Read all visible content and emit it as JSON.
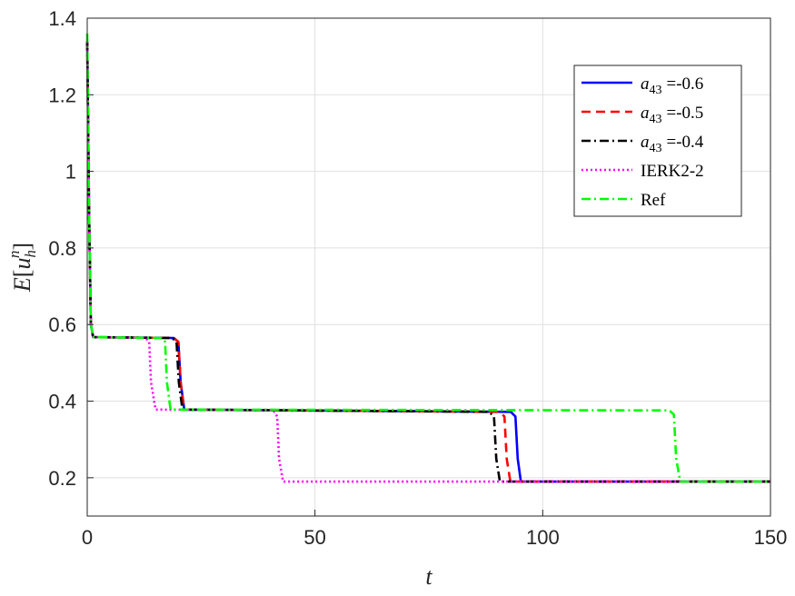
{
  "chart_data": {
    "type": "line",
    "xlabel": "t",
    "ylabel_parts": {
      "fn": "E",
      "var": "u",
      "sub": "h",
      "sup": "n"
    },
    "xlim": [
      0,
      150
    ],
    "ylim": [
      0.1,
      1.4
    ],
    "xticks": [
      0,
      50,
      100,
      150
    ],
    "yticks": [
      0.2,
      0.4,
      0.6,
      0.8,
      1.0,
      1.2,
      1.4
    ],
    "xtick_labels": [
      "0",
      "50",
      "100",
      "150"
    ],
    "ytick_labels": [
      "0.2",
      "0.4",
      "0.6",
      "0.8",
      "1",
      "1.2",
      "1.4"
    ],
    "grid": true,
    "legend_position": "top-right",
    "series": [
      {
        "label_parts": {
          "var": "a",
          "sub": "43",
          "eq": "=-0.6"
        },
        "color": "#0000ff",
        "dash": "solid",
        "x": [
          0,
          0.4,
          0.8,
          1.3,
          19.0,
          20.0,
          20.5,
          21.3,
          93.0,
          94.0,
          94.5,
          95.2,
          150
        ],
        "y": [
          1.34,
          0.9,
          0.6,
          0.567,
          0.565,
          0.555,
          0.45,
          0.378,
          0.372,
          0.36,
          0.25,
          0.19,
          0.19
        ]
      },
      {
        "label_parts": {
          "var": "a",
          "sub": "43",
          "eq": "=-0.5"
        },
        "color": "#ff0000",
        "dash": "dashed",
        "x": [
          0,
          0.4,
          0.8,
          1.3,
          19.0,
          20.0,
          20.5,
          21.3,
          90.5,
          91.6,
          92.1,
          92.9,
          150
        ],
        "y": [
          1.34,
          0.9,
          0.6,
          0.567,
          0.565,
          0.555,
          0.45,
          0.378,
          0.372,
          0.36,
          0.25,
          0.19,
          0.19
        ]
      },
      {
        "label_parts": {
          "var": "a",
          "sub": "43",
          "eq": "=-0.4"
        },
        "color": "#000000",
        "dash": "dashdot",
        "x": [
          0,
          0.4,
          0.8,
          1.3,
          18.6,
          19.6,
          20.1,
          20.9,
          88.2,
          89.3,
          89.8,
          90.6,
          150
        ],
        "y": [
          1.34,
          0.9,
          0.6,
          0.567,
          0.565,
          0.555,
          0.45,
          0.378,
          0.372,
          0.36,
          0.25,
          0.19,
          0.19
        ]
      },
      {
        "label_parts": {
          "text": "IERK2-2"
        },
        "color": "#ff00ff",
        "dash": "dotted",
        "x": [
          0,
          0.4,
          0.8,
          1.3,
          12.8,
          13.6,
          14.0,
          15.0,
          40.9,
          41.7,
          42.1,
          43.0,
          150
        ],
        "y": [
          1.34,
          0.9,
          0.6,
          0.567,
          0.565,
          0.555,
          0.45,
          0.378,
          0.376,
          0.36,
          0.25,
          0.19,
          0.19
        ]
      },
      {
        "label_parts": {
          "text": "Ref"
        },
        "color": "#00ff00",
        "dash": "dashdot",
        "x": [
          0,
          0.4,
          0.8,
          1.3,
          16.3,
          17.1,
          17.5,
          18.3,
          127.8,
          128.8,
          129.3,
          130.2,
          150
        ],
        "y": [
          1.36,
          0.9,
          0.6,
          0.567,
          0.565,
          0.555,
          0.45,
          0.378,
          0.376,
          0.365,
          0.25,
          0.19,
          0.19
        ]
      }
    ]
  }
}
